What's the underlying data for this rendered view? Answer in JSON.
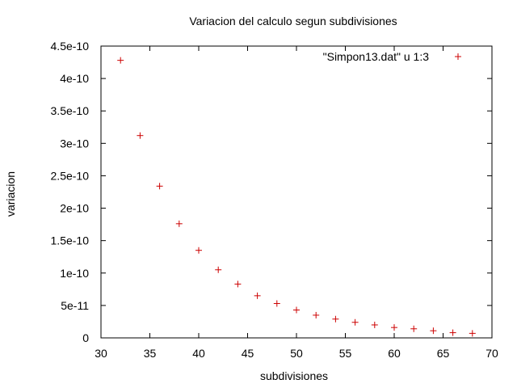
{
  "chart_data": {
    "type": "scatter",
    "title": "Variacion del calculo segun subdivisiones",
    "xlabel": "subdivisiones",
    "ylabel": "variacion",
    "xlim": [
      30,
      70
    ],
    "ylim": [
      0,
      4.5e-10
    ],
    "x_ticks": [
      30,
      35,
      40,
      45,
      50,
      55,
      60,
      65,
      70
    ],
    "x_tick_labels": [
      "30",
      "35",
      "40",
      "45",
      "50",
      "55",
      "60",
      "65",
      "70"
    ],
    "y_ticks": [
      0,
      5e-11,
      1e-10,
      1.5e-10,
      2e-10,
      2.5e-10,
      3e-10,
      3.5e-10,
      4e-10,
      4.5e-10
    ],
    "y_tick_labels": [
      "0",
      "5e-11",
      "1e-10",
      "1.5e-10",
      "2e-10",
      "2.5e-10",
      "3e-10",
      "3.5e-10",
      "4e-10",
      "4.5e-10"
    ],
    "grid": false,
    "legend_position": "top-right",
    "series": [
      {
        "name": "\"Simpon13.dat\" u 1:3",
        "color": "#cc0000",
        "marker": "plus",
        "x": [
          32,
          34,
          36,
          38,
          40,
          42,
          44,
          46,
          48,
          50,
          52,
          54,
          56,
          58,
          60,
          62,
          64,
          66,
          68
        ],
        "y": [
          4.28e-10,
          3.12e-10,
          2.34e-10,
          1.76e-10,
          1.35e-10,
          1.05e-10,
          8.3e-11,
          6.5e-11,
          5.3e-11,
          4.3e-11,
          3.5e-11,
          2.9e-11,
          2.4e-11,
          2e-11,
          1.6e-11,
          1.4e-11,
          1.1e-11,
          8e-12,
          7e-12
        ]
      }
    ]
  }
}
